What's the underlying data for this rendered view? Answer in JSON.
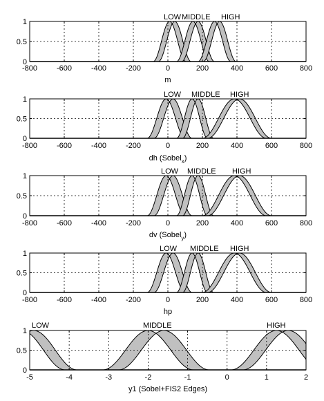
{
  "chart_data": [
    {
      "type": "area",
      "subtype": "interval type-2 membership functions",
      "xlabel": "m",
      "xlim": [
        -800,
        800
      ],
      "ylim": [
        0,
        1
      ],
      "xticks": [
        "-800",
        "-600",
        "-400",
        "-200",
        "0",
        "200",
        "400",
        "600",
        "800"
      ],
      "yticks": [
        "0",
        "0.5",
        "1"
      ],
      "grid": "dashed",
      "mf_labels": [
        "LOW",
        "MIDDLE",
        "HIGH"
      ],
      "series": [
        {
          "name": "LOW",
          "upper_center": 40,
          "lower_center": 10,
          "width": 95
        },
        {
          "name": "MIDDLE",
          "upper_center": 175,
          "lower_center": 145,
          "width": 95
        },
        {
          "name": "HIGH",
          "upper_center": 300,
          "lower_center": 270,
          "width": 95
        }
      ]
    },
    {
      "type": "area",
      "subtype": "interval type-2 membership functions",
      "xlabel": "dh (Sobel",
      "xlabel_subscript": "x",
      "xlabel_suffix": ")",
      "xlim": [
        -800,
        800
      ],
      "ylim": [
        0,
        1
      ],
      "xticks": [
        "-800",
        "-600",
        "-400",
        "-200",
        "0",
        "200",
        "400",
        "600",
        "800"
      ],
      "yticks": [
        "0",
        "0.5",
        "1"
      ],
      "grid": "dashed",
      "mf_labels": [
        "LOW",
        "MIDDLE",
        "HIGH"
      ],
      "series": [
        {
          "name": "LOW",
          "upper_center": 30,
          "lower_center": -10,
          "width": 110
        },
        {
          "name": "MIDDLE",
          "upper_center": 175,
          "lower_center": 140,
          "width": 90
        },
        {
          "name": "HIGH",
          "upper_center": 415,
          "lower_center": 385,
          "width": 185
        }
      ]
    },
    {
      "type": "area",
      "subtype": "interval type-2 membership functions",
      "xlabel": "dv (Sobel",
      "xlabel_subscript": "y",
      "xlabel_suffix": ")",
      "xlim": [
        -800,
        800
      ],
      "ylim": [
        0,
        1
      ],
      "xticks": [
        "-800",
        "-600",
        "-400",
        "-200",
        "0",
        "200",
        "400",
        "600",
        "800"
      ],
      "yticks": [
        "0",
        "0.5",
        "1"
      ],
      "grid": "dashed",
      "mf_labels": [
        "LOW",
        "MIDDLE",
        "HIGH"
      ],
      "series": [
        {
          "name": "LOW",
          "upper_center": 30,
          "lower_center": -10,
          "width": 110
        },
        {
          "name": "MIDDLE",
          "upper_center": 175,
          "lower_center": 140,
          "width": 90
        },
        {
          "name": "HIGH",
          "upper_center": 415,
          "lower_center": 385,
          "width": 185
        }
      ]
    },
    {
      "type": "area",
      "subtype": "interval type-2 membership functions",
      "xlabel": "hp",
      "xlim": [
        -800,
        800
      ],
      "ylim": [
        0,
        1
      ],
      "xticks": [
        "-800",
        "-600",
        "-400",
        "-200",
        "0",
        "200",
        "400",
        "600",
        "800"
      ],
      "yticks": [
        "0",
        "0.5",
        "1"
      ],
      "grid": "dashed",
      "mf_labels": [
        "LOW",
        "MIDDLE",
        "HIGH"
      ],
      "series": [
        {
          "name": "LOW",
          "upper_center": 30,
          "lower_center": -10,
          "width": 110
        },
        {
          "name": "MIDDLE",
          "upper_center": 175,
          "lower_center": 140,
          "width": 90
        },
        {
          "name": "HIGH",
          "upper_center": 415,
          "lower_center": 385,
          "width": 185
        }
      ]
    },
    {
      "type": "area",
      "subtype": "interval type-2 membership functions",
      "xlabel": "y1 (Sobel+FIS2 Edges)",
      "xlim": [
        -5,
        2
      ],
      "ylim": [
        0,
        1
      ],
      "xticks": [
        "-5",
        "-4",
        "-3",
        "-2",
        "-1",
        "0",
        "1",
        "2"
      ],
      "yticks": [
        "0",
        "0.5",
        "1"
      ],
      "grid": "dashed",
      "mf_labels": [
        "LOW",
        "MIDDLE",
        "HIGH"
      ],
      "series": [
        {
          "name": "LOW",
          "upper_center": -4.9,
          "lower_center": -5.2,
          "width": 1.1
        },
        {
          "name": "MIDDLE",
          "upper_center": -1.6,
          "lower_center": -2.0,
          "width": 1.15
        },
        {
          "name": "HIGH",
          "upper_center": 1.55,
          "lower_center": 1.25,
          "width": 1.15
        }
      ]
    }
  ]
}
